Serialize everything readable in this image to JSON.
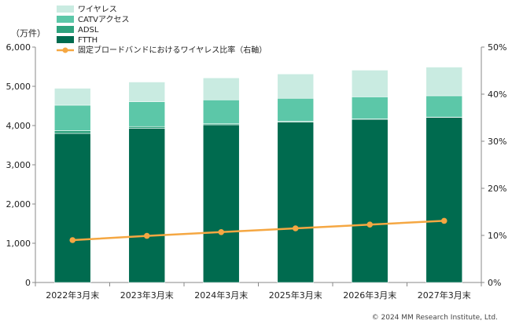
{
  "chart_data": {
    "type": "bar",
    "stacked": true,
    "categories": [
      "2022年3月末",
      "2023年3月末",
      "2024年3月末",
      "2025年3月末",
      "2026年3月末",
      "2027年3月末"
    ],
    "series": [
      {
        "name": "FTTH",
        "color": "#006b4f",
        "values": [
          3800,
          3930,
          4020,
          4090,
          4160,
          4210
        ]
      },
      {
        "name": "ADSL",
        "color": "#2fa37e",
        "values": [
          70,
          45,
          25,
          15,
          8,
          5
        ]
      },
      {
        "name": "CATVアクセス",
        "color": "#5cc7a8",
        "values": [
          650,
          635,
          610,
          590,
          565,
          545
        ]
      },
      {
        "name": "ワイヤレス",
        "color": "#c9ebe1",
        "values": [
          430,
          500,
          560,
          620,
          680,
          730
        ]
      }
    ],
    "line_series": {
      "name": "固定ブロードバンドにおけるワイヤレス比率（右軸）",
      "color": "#f5a742",
      "values": [
        9.0,
        9.9,
        10.7,
        11.5,
        12.3,
        13.1
      ]
    },
    "y_unit": "（万件）",
    "ylim": [
      0,
      6000
    ],
    "y_ticks": [
      "0",
      "1,000",
      "2,000",
      "3,000",
      "4,000",
      "5,000",
      "6,000"
    ],
    "y2lim": [
      0,
      50
    ],
    "y2_ticks": [
      "0%",
      "10%",
      "20%",
      "30%",
      "40%",
      "50%"
    ],
    "grid": false,
    "legend_position": "top-left",
    "legend_order": [
      "ワイヤレス",
      "CATVアクセス",
      "ADSL",
      "FTTH",
      "固定ブロードバンドにおけるワイヤレス比率（右軸）"
    ]
  },
  "copyright": "© 2024 MM Research Institute, Ltd."
}
